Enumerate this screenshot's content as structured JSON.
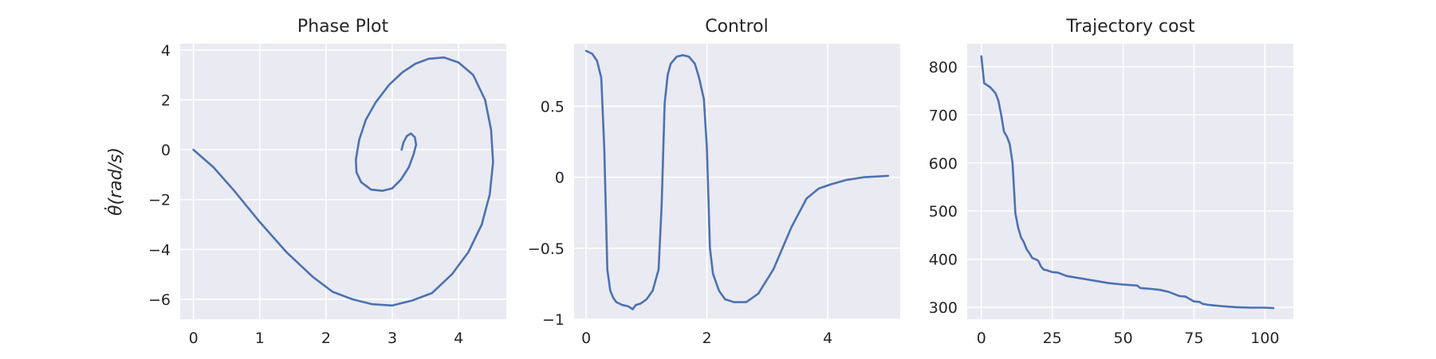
{
  "chart_data": [
    {
      "type": "line",
      "title": "Phase Plot",
      "ylabel": "θ̇(rad/s)",
      "xlim": [
        -0.2,
        4.72
      ],
      "ylim": [
        -6.8,
        4.25
      ],
      "xticks": [
        0,
        1,
        2,
        3,
        4
      ],
      "yticks": [
        4,
        2,
        0,
        -2,
        -4,
        -6
      ],
      "grid": true,
      "series": [
        {
          "color": "#4c72b0",
          "x": [
            0,
            0.3,
            0.6,
            1.0,
            1.4,
            1.8,
            2.1,
            2.4,
            2.7,
            3.0,
            3.3,
            3.6,
            3.9,
            4.15,
            4.35,
            4.47,
            4.52,
            4.49,
            4.4,
            4.22,
            4.0,
            3.78,
            3.55,
            3.35,
            3.15,
            2.95,
            2.75,
            2.6,
            2.5,
            2.45,
            2.46,
            2.53,
            2.68,
            2.85,
            3.0,
            3.13,
            3.25,
            3.32,
            3.36,
            3.34,
            3.28,
            3.22,
            3.17,
            3.14
          ],
          "y": [
            0,
            -0.7,
            -1.6,
            -2.9,
            -4.1,
            -5.1,
            -5.7,
            -6.0,
            -6.2,
            -6.25,
            -6.05,
            -5.75,
            -5.0,
            -4.1,
            -3.0,
            -1.8,
            -0.5,
            0.8,
            2.0,
            3.0,
            3.5,
            3.7,
            3.65,
            3.45,
            3.1,
            2.6,
            1.9,
            1.2,
            0.4,
            -0.4,
            -0.9,
            -1.3,
            -1.6,
            -1.65,
            -1.55,
            -1.2,
            -0.7,
            -0.2,
            0.2,
            0.5,
            0.65,
            0.55,
            0.3,
            0
          ]
        }
      ]
    },
    {
      "type": "line",
      "title": "Control",
      "xlim": [
        -0.2,
        5.2
      ],
      "ylim": [
        -1.0,
        0.94
      ],
      "xticks": [
        0,
        2,
        4
      ],
      "yticks": [
        0.5,
        0.0,
        -0.5,
        -1.0
      ],
      "grid": true,
      "series": [
        {
          "color": "#4c72b0",
          "x": [
            0,
            0.1,
            0.18,
            0.25,
            0.3,
            0.35,
            0.4,
            0.45,
            0.5,
            0.6,
            0.7,
            0.77,
            0.82,
            0.9,
            1.0,
            1.1,
            1.2,
            1.25,
            1.3,
            1.35,
            1.4,
            1.5,
            1.6,
            1.7,
            1.8,
            1.87,
            1.95,
            2.0,
            2.05,
            2.1,
            2.2,
            2.3,
            2.45,
            2.65,
            2.85,
            3.1,
            3.4,
            3.65,
            3.85,
            4.05,
            4.3,
            4.6,
            5.0
          ],
          "y": [
            0.89,
            0.87,
            0.82,
            0.7,
            0.2,
            -0.65,
            -0.8,
            -0.85,
            -0.88,
            -0.9,
            -0.91,
            -0.93,
            -0.9,
            -0.89,
            -0.86,
            -0.8,
            -0.65,
            -0.2,
            0.52,
            0.72,
            0.8,
            0.85,
            0.86,
            0.85,
            0.8,
            0.7,
            0.55,
            0.2,
            -0.5,
            -0.68,
            -0.8,
            -0.86,
            -0.88,
            -0.88,
            -0.82,
            -0.65,
            -0.35,
            -0.15,
            -0.08,
            -0.05,
            -0.02,
            0.0,
            0.01
          ]
        }
      ]
    },
    {
      "type": "line",
      "title": "Trajectory cost",
      "xlim": [
        -5,
        110
      ],
      "ylim": [
        275,
        848
      ],
      "xticks": [
        0,
        25,
        50,
        75,
        100
      ],
      "yticks": [
        800,
        700,
        600,
        500,
        400,
        300
      ],
      "grid": true,
      "series": [
        {
          "color": "#4c72b0",
          "x": [
            0,
            1,
            2,
            3,
            4,
            5,
            6,
            7,
            8,
            9,
            10,
            11,
            12,
            13,
            14,
            15,
            16,
            17,
            18,
            19,
            20,
            21,
            22,
            23,
            24,
            25,
            27,
            30,
            35,
            40,
            45,
            50,
            55,
            56,
            58,
            60,
            63,
            66,
            69,
            70,
            72,
            74,
            75,
            77,
            78,
            80,
            85,
            90,
            95,
            100,
            103
          ],
          "y": [
            822,
            766,
            762,
            758,
            752,
            745,
            730,
            700,
            665,
            655,
            640,
            600,
            495,
            465,
            445,
            435,
            420,
            412,
            402,
            400,
            397,
            385,
            378,
            377,
            375,
            373,
            372,
            365,
            360,
            355,
            350,
            347,
            345,
            340,
            339,
            338,
            336,
            332,
            325,
            323,
            322,
            315,
            312,
            311,
            307,
            305,
            302,
            300,
            299,
            299,
            298
          ]
        }
      ]
    }
  ]
}
